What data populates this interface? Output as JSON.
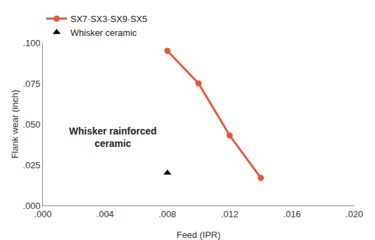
{
  "chart_data": {
    "type": "line",
    "x_label": "Feed (IPR)",
    "y_label": "Flank wear (inch)",
    "series": [
      {
        "name": "SX7·SX3·SX9·SX5",
        "type": "line",
        "color": "#e8553a",
        "marker": "circle",
        "x": [
          0.008,
          0.01,
          0.012,
          0.014
        ],
        "values": [
          0.095,
          0.075,
          0.043,
          0.017
        ]
      },
      {
        "name": "Whisker ceramic",
        "type": "scatter",
        "color": "#000000",
        "marker": "triangle-up",
        "x": [
          0.008
        ],
        "values": [
          0.02
        ]
      }
    ],
    "xlim": [
      0,
      0.02
    ],
    "xticks": [
      {
        "value": 0,
        "label": ".000"
      },
      {
        "value": 0.004,
        "label": ".004"
      },
      {
        "value": 0.008,
        "label": ".008"
      },
      {
        "value": 0.012,
        "label": ".012"
      },
      {
        "value": 0.016,
        "label": ".016"
      },
      {
        "value": 0.02,
        "label": ".020"
      }
    ],
    "ylim": [
      0,
      0.1
    ],
    "yticks": [
      {
        "value": 0,
        "label": ".000"
      },
      {
        "value": 0.025,
        "label": ".025"
      },
      {
        "value": 0.05,
        "label": ".050"
      },
      {
        "value": 0.075,
        "label": ".075"
      },
      {
        "value": 0.1,
        "label": ".100"
      }
    ],
    "grid": false,
    "legend": "top left",
    "annotations": [
      {
        "text": "Whisker rainforced ceramic",
        "x": 0.0045,
        "y": 0.042
      }
    ]
  }
}
